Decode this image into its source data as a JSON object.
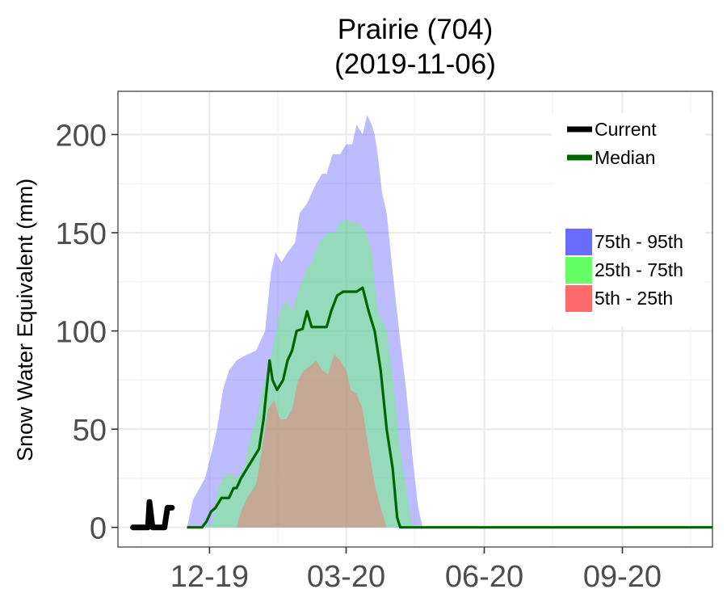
{
  "chart_data": {
    "type": "area",
    "title": "Prairie (704)",
    "subtitle": "(2019-11-06)",
    "xlabel": "",
    "ylabel": "Snow Water Equivalent (mm)",
    "ylim": [
      -10,
      222
    ],
    "xlim": [
      "2019-10-01",
      "2020-10-31"
    ],
    "y_ticks": [
      0,
      50,
      100,
      150,
      200
    ],
    "x_ticks": [
      {
        "label": "12-19",
        "date": "2019-12-01"
      },
      {
        "label": "03-20",
        "date": "2020-03-01"
      },
      {
        "label": "06-20",
        "date": "2020-06-01"
      },
      {
        "label": "09-20",
        "date": "2020-09-01"
      }
    ],
    "grid": true,
    "legend_position": "top-right",
    "bands": [
      {
        "name": "75th - 95th",
        "color": "#6b6bff",
        "fill": "rgba(107,107,255,0.45)",
        "upper": [
          [
            "2019-11-16",
            0
          ],
          [
            "2019-11-20",
            14
          ],
          [
            "2019-11-28",
            25
          ],
          [
            "2019-12-03",
            40
          ],
          [
            "2019-12-06",
            50
          ],
          [
            "2019-12-10",
            70
          ],
          [
            "2019-12-14",
            80
          ],
          [
            "2019-12-19",
            85
          ],
          [
            "2019-12-26",
            88
          ],
          [
            "2020-01-01",
            90
          ],
          [
            "2020-01-07",
            100
          ],
          [
            "2020-01-11",
            130
          ],
          [
            "2020-01-14",
            140
          ],
          [
            "2020-01-18",
            135
          ],
          [
            "2020-01-22",
            140
          ],
          [
            "2020-01-27",
            145
          ],
          [
            "2020-01-30",
            160
          ],
          [
            "2020-02-04",
            165
          ],
          [
            "2020-02-10",
            175
          ],
          [
            "2020-02-14",
            180
          ],
          [
            "2020-02-17",
            180
          ],
          [
            "2020-02-21",
            190
          ],
          [
            "2020-02-26",
            190
          ],
          [
            "2020-03-01",
            195
          ],
          [
            "2020-03-05",
            195
          ],
          [
            "2020-03-08",
            205
          ],
          [
            "2020-03-12",
            200
          ],
          [
            "2020-03-15",
            210
          ],
          [
            "2020-03-18",
            205
          ],
          [
            "2020-03-20",
            200
          ],
          [
            "2020-03-22",
            190
          ],
          [
            "2020-03-25",
            170
          ],
          [
            "2020-03-28",
            160
          ],
          [
            "2020-04-01",
            130
          ],
          [
            "2020-04-06",
            95
          ],
          [
            "2020-04-10",
            70
          ],
          [
            "2020-04-15",
            30
          ],
          [
            "2020-04-18",
            10
          ],
          [
            "2020-04-21",
            0
          ]
        ],
        "lower": [
          [
            "2019-11-16",
            0
          ],
          [
            "2020-04-21",
            0
          ]
        ]
      },
      {
        "name": "25th - 75th",
        "color": "#66ff66",
        "fill": "rgba(102,255,102,0.45)",
        "upper": [
          [
            "2019-11-24",
            0
          ],
          [
            "2019-12-03",
            2
          ],
          [
            "2019-12-06",
            18
          ],
          [
            "2019-12-10",
            25
          ],
          [
            "2019-12-14",
            28
          ],
          [
            "2019-12-19",
            25
          ],
          [
            "2019-12-24",
            30
          ],
          [
            "2019-12-28",
            45
          ],
          [
            "2020-01-01",
            55
          ],
          [
            "2020-01-05",
            70
          ],
          [
            "2020-01-09",
            80
          ],
          [
            "2020-01-13",
            95
          ],
          [
            "2020-01-17",
            110
          ],
          [
            "2020-01-21",
            115
          ],
          [
            "2020-01-25",
            110
          ],
          [
            "2020-01-29",
            120
          ],
          [
            "2020-02-03",
            130
          ],
          [
            "2020-02-07",
            135
          ],
          [
            "2020-02-12",
            145
          ],
          [
            "2020-02-17",
            150
          ],
          [
            "2020-02-22",
            150
          ],
          [
            "2020-02-26",
            155
          ],
          [
            "2020-03-01",
            157
          ],
          [
            "2020-03-05",
            155
          ],
          [
            "2020-03-09",
            155
          ],
          [
            "2020-03-14",
            150
          ],
          [
            "2020-03-18",
            140
          ],
          [
            "2020-03-22",
            110
          ],
          [
            "2020-03-28",
            100
          ],
          [
            "2020-04-02",
            70
          ],
          [
            "2020-04-06",
            40
          ],
          [
            "2020-04-10",
            20
          ],
          [
            "2020-04-14",
            0
          ]
        ],
        "lower": [
          [
            "2019-11-24",
            0
          ],
          [
            "2020-04-14",
            0
          ]
        ]
      },
      {
        "name": "5th - 25th",
        "color": "#ff6b6b",
        "fill": "rgba(255,107,107,0.45)",
        "upper": [
          [
            "2019-12-19",
            0
          ],
          [
            "2019-12-22",
            8
          ],
          [
            "2019-12-26",
            15
          ],
          [
            "2020-01-01",
            22
          ],
          [
            "2020-01-05",
            40
          ],
          [
            "2020-01-09",
            60
          ],
          [
            "2020-01-13",
            65
          ],
          [
            "2020-01-17",
            55
          ],
          [
            "2020-01-21",
            55
          ],
          [
            "2020-01-25",
            60
          ],
          [
            "2020-01-29",
            75
          ],
          [
            "2020-02-02",
            80
          ],
          [
            "2020-02-06",
            82
          ],
          [
            "2020-02-10",
            85
          ],
          [
            "2020-02-14",
            80
          ],
          [
            "2020-02-18",
            78
          ],
          [
            "2020-02-22",
            88
          ],
          [
            "2020-02-26",
            85
          ],
          [
            "2020-03-01",
            80
          ],
          [
            "2020-03-04",
            70
          ],
          [
            "2020-03-08",
            68
          ],
          [
            "2020-03-12",
            60
          ],
          [
            "2020-03-16",
            40
          ],
          [
            "2020-03-20",
            22
          ],
          [
            "2020-03-24",
            10
          ],
          [
            "2020-03-28",
            0
          ]
        ],
        "lower": [
          [
            "2019-12-19",
            0
          ],
          [
            "2020-03-28",
            0
          ]
        ]
      }
    ],
    "series": [
      {
        "name": "Median",
        "color": "#006400",
        "points": [
          [
            "2019-11-16",
            0
          ],
          [
            "2019-11-26",
            0
          ],
          [
            "2019-11-29",
            3
          ],
          [
            "2019-12-02",
            8
          ],
          [
            "2019-12-05",
            10
          ],
          [
            "2019-12-09",
            15
          ],
          [
            "2019-12-14",
            15
          ],
          [
            "2019-12-17",
            20
          ],
          [
            "2019-12-19",
            20
          ],
          [
            "2019-12-22",
            25
          ],
          [
            "2019-12-26",
            30
          ],
          [
            "2019-12-30",
            35
          ],
          [
            "2020-01-03",
            40
          ],
          [
            "2020-01-06",
            55
          ],
          [
            "2020-01-08",
            70
          ],
          [
            "2020-01-10",
            85
          ],
          [
            "2020-01-12",
            75
          ],
          [
            "2020-01-15",
            70
          ],
          [
            "2020-01-19",
            75
          ],
          [
            "2020-01-22",
            85
          ],
          [
            "2020-01-25",
            90
          ],
          [
            "2020-01-28",
            100
          ],
          [
            "2020-02-01",
            101
          ],
          [
            "2020-02-04",
            110
          ],
          [
            "2020-02-07",
            102
          ],
          [
            "2020-02-12",
            102
          ],
          [
            "2020-02-17",
            102
          ],
          [
            "2020-02-20",
            110
          ],
          [
            "2020-02-24",
            118
          ],
          [
            "2020-02-28",
            120
          ],
          [
            "2020-03-04",
            120
          ],
          [
            "2020-03-08",
            120
          ],
          [
            "2020-03-12",
            122
          ],
          [
            "2020-03-16",
            110
          ],
          [
            "2020-03-20",
            100
          ],
          [
            "2020-03-24",
            80
          ],
          [
            "2020-03-28",
            50
          ],
          [
            "2020-04-01",
            30
          ],
          [
            "2020-04-04",
            5
          ],
          [
            "2020-04-06",
            0
          ],
          [
            "2020-10-31",
            0
          ]
        ]
      },
      {
        "name": "Current",
        "color": "#000000",
        "points": [
          [
            "2019-10-11",
            0
          ],
          [
            "2019-10-21",
            0
          ],
          [
            "2019-10-22",
            13
          ],
          [
            "2019-10-24",
            0
          ],
          [
            "2019-11-01",
            0
          ],
          [
            "2019-11-03",
            10
          ],
          [
            "2019-11-06",
            10
          ]
        ]
      }
    ]
  }
}
